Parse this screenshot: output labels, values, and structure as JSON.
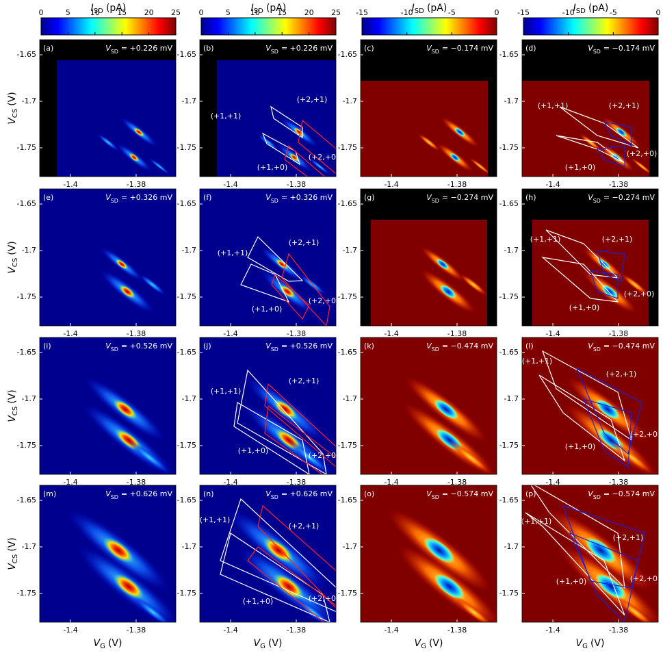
{
  "colorbars": [
    {
      "label": {
        "symbol": "I",
        "subscript": "SD",
        "unit": "(pA)"
      },
      "lim": [
        0,
        25
      ],
      "ticks": [
        0,
        5,
        10,
        15,
        20,
        25
      ]
    },
    {
      "label": {
        "symbol": "I",
        "subscript": "SD",
        "unit": "(pA)"
      },
      "lim": [
        0,
        25
      ],
      "ticks": [
        0,
        5,
        10,
        15,
        20,
        25
      ]
    },
    {
      "label": {
        "symbol": "I",
        "subscript": "SD",
        "unit": "(pA)"
      },
      "lim": [
        -15,
        0
      ],
      "ticks": [
        -15,
        -10,
        -5,
        0
      ]
    },
    {
      "label": {
        "symbol": "I",
        "subscript": "SD",
        "unit": "(pA)"
      },
      "lim": [
        -15,
        0
      ],
      "ticks": [
        -15,
        -10,
        -5,
        0
      ]
    }
  ],
  "x_axis": {
    "label": {
      "symbol": "V",
      "subscript": "G",
      "unit": "(V)"
    },
    "lim": [
      -1.4094,
      -1.3679
    ],
    "ticks": [
      -1.4,
      -1.38
    ]
  },
  "y_axis": {
    "label": {
      "symbol": "V",
      "subscript": "CS",
      "unit": "(V)"
    },
    "lim": [
      -1.7809,
      -1.6338
    ],
    "ticks": [
      -1.65,
      -1.7,
      -1.75
    ]
  },
  "panels": [
    {
      "label": "(a)",
      "bias": {
        "symbol": "V",
        "subscript": "SD",
        "value": "= +0.226 mV"
      }
    },
    {
      "label": "(b)",
      "bias": {
        "symbol": "V",
        "subscript": "SD",
        "value": "= +0.226 mV"
      },
      "states": [
        "(+1,+1)",
        "(+2,+1)",
        "(+1,+0)",
        "(+2,+0)"
      ]
    },
    {
      "label": "(c)",
      "bias": {
        "symbol": "V",
        "subscript": "SD",
        "value": "= −0.174 mV"
      }
    },
    {
      "label": "(d)",
      "bias": {
        "symbol": "V",
        "subscript": "SD",
        "value": "= −0.174 mV"
      },
      "states": [
        "(+1,+1)",
        "(+2,+1)",
        "(+1,+0)",
        "(+2,+0)"
      ]
    },
    {
      "label": "(e)",
      "bias": {
        "symbol": "V",
        "subscript": "SD",
        "value": "= +0.326 mV"
      }
    },
    {
      "label": "(f)",
      "bias": {
        "symbol": "V",
        "subscript": "SD",
        "value": "= +0.326 mV"
      },
      "states": [
        "(+1,+1)",
        "(+2,+1)",
        "(+1,+0)",
        "(+2,+0)"
      ]
    },
    {
      "label": "(g)",
      "bias": {
        "symbol": "V",
        "subscript": "SD",
        "value": "= −0.274 mV"
      }
    },
    {
      "label": "(h)",
      "bias": {
        "symbol": "V",
        "subscript": "SD",
        "value": "= −0.274 mV"
      },
      "states": [
        "(+1,+1)",
        "(+2,+1)",
        "(+1,+0)",
        "(+2,+0)"
      ]
    },
    {
      "label": "(i)",
      "bias": {
        "symbol": "V",
        "subscript": "SD",
        "value": "= +0.526 mV"
      }
    },
    {
      "label": "(j)",
      "bias": {
        "symbol": "V",
        "subscript": "SD",
        "value": "= +0.526 mV"
      },
      "states": [
        "(+1,+1)",
        "(+2,+1)",
        "(+1,+0)",
        "(+2,+0)"
      ]
    },
    {
      "label": "(k)",
      "bias": {
        "symbol": "V",
        "subscript": "SD",
        "value": "= −0.474 mV"
      }
    },
    {
      "label": "(l)",
      "bias": {
        "symbol": "V",
        "subscript": "SD",
        "value": "= −0.474 mV"
      },
      "states": [
        "(+1,+1)",
        "(+2,+1)",
        "(+1,+0)",
        "(+2,+0)"
      ]
    },
    {
      "label": "(m)",
      "bias": {
        "symbol": "V",
        "subscript": "SD",
        "value": "= +0.626 mV"
      }
    },
    {
      "label": "(n)",
      "bias": {
        "symbol": "V",
        "subscript": "SD",
        "value": "= +0.626 mV"
      },
      "states": [
        "(+1,+1)",
        "(+2,+1)",
        "(+1,+0)",
        "(+2,+0)"
      ]
    },
    {
      "label": "(o)",
      "bias": {
        "symbol": "V",
        "subscript": "SD",
        "value": "= −0.574 mV"
      }
    },
    {
      "label": "(p)",
      "bias": {
        "symbol": "V",
        "subscript": "SD",
        "value": "= −0.574 mV"
      },
      "states": [
        "(+1,+1)",
        "(+2,+1)",
        "(+1,+0)",
        "(+2,+0)"
      ]
    }
  ]
}
